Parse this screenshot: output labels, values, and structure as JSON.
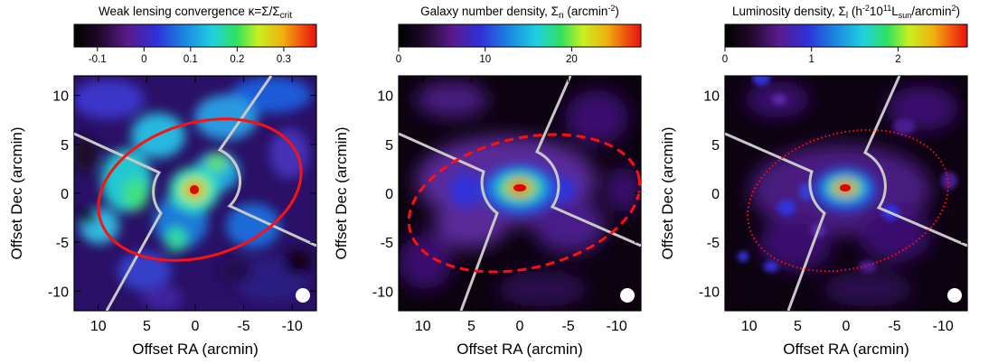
{
  "chart_data": [
    {
      "type": "heatmap",
      "title": "Weak lensing convergence κ=Σ/Σ",
      "title_sub": "crit",
      "xlabel": "Offset RA (arcmin)",
      "ylabel": "Offset Dec (arcmin)",
      "xlim": [
        12.5,
        -12.5
      ],
      "ylim": [
        -12,
        12
      ],
      "xticks": [
        10,
        5,
        0,
        -5,
        -10
      ],
      "yticks": [
        10,
        5,
        0,
        -5,
        -10
      ],
      "colorbar": {
        "range": [
          -0.15,
          0.37
        ],
        "ticks": [
          -0.1,
          0,
          0.1,
          0.2,
          0.3
        ]
      },
      "peak": {
        "x": 0,
        "y": 0
      },
      "ellipse": {
        "center": [
          -0.5,
          0
        ],
        "semi_major_arcmin": 9.7,
        "semi_minor_arcmin": 6.1,
        "tilt_deg": 17,
        "style": "solid",
        "color": "#ff1010"
      },
      "cut_lines": {
        "color": "#c8c8c8"
      }
    },
    {
      "type": "heatmap",
      "title": "Galaxy number density, Σ",
      "title_sub": "n",
      "title_unit": " (arcmin",
      "title_sup": "-2",
      "title_end": ")",
      "xlabel": "Offset RA (arcmin)",
      "ylabel": "Offset Dec (arcmin)",
      "xlim": [
        12.5,
        -12.5
      ],
      "ylim": [
        -12,
        12
      ],
      "xticks": [
        10,
        5,
        0,
        -5,
        -10
      ],
      "yticks": [
        10,
        5,
        0,
        -5,
        -10
      ],
      "colorbar": {
        "range": [
          0,
          28
        ],
        "ticks": [
          0,
          10,
          20
        ]
      },
      "peak": {
        "x": 0,
        "y": 0
      },
      "ellipse": {
        "center": [
          -0.5,
          -1.5
        ],
        "semi_major_arcmin": 11.0,
        "semi_minor_arcmin": 6.2,
        "tilt_deg": 13,
        "style": "dashed",
        "color": "#ff1010"
      },
      "cut_lines": {
        "color": "#c8c8c8"
      }
    },
    {
      "type": "heatmap",
      "title": "Luminosity density, Σ",
      "title_sub": "l",
      "title_a": " (h",
      "title_sup1": "-2",
      "title_b": "10",
      "title_sup2": "11",
      "title_c": "L",
      "title_sub2": "sun",
      "title_d": "/arcmin",
      "title_sup3": "2",
      "title_e": ")",
      "xlabel": "Offset RA (arcmin)",
      "ylabel": "Offset Dec (arcmin)",
      "xlim": [
        12.5,
        -12.5
      ],
      "ylim": [
        -12,
        12
      ],
      "xticks": [
        10,
        5,
        0,
        -5,
        -10
      ],
      "yticks": [
        10,
        5,
        0,
        -5,
        -10
      ],
      "colorbar": {
        "range": [
          0,
          2.8
        ],
        "ticks": [
          0,
          1,
          2
        ]
      },
      "peak": {
        "x": 0,
        "y": 0
      },
      "ellipse": {
        "center": [
          -0.5,
          -1.2
        ],
        "semi_major_arcmin": 9.5,
        "semi_minor_arcmin": 6.3,
        "tilt_deg": 15,
        "style": "dotted",
        "color": "#ff1010"
      },
      "cut_lines": {
        "color": "#c8c8c8"
      }
    }
  ]
}
